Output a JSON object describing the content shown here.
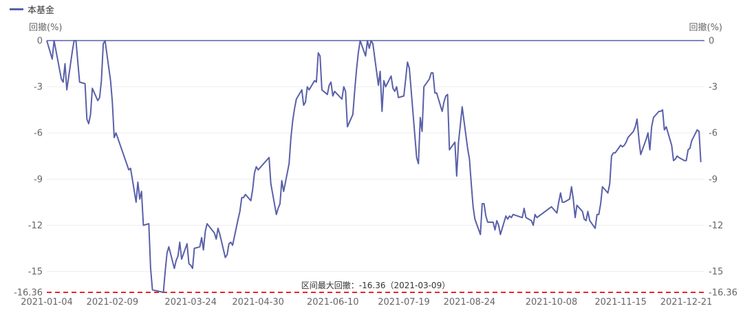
{
  "chart_data": {
    "type": "line",
    "legend": {
      "position": "top-left"
    },
    "series": [
      {
        "name": "本基金",
        "color": "#5960a8",
        "points": [
          [
            "2021-01-04",
            0
          ],
          [
            "2021-01-07",
            -1.2
          ],
          [
            "2021-01-08",
            0
          ],
          [
            "2021-01-12",
            -2.5
          ],
          [
            "2021-01-13",
            -2.7
          ],
          [
            "2021-01-14",
            -1.5
          ],
          [
            "2021-01-15",
            -3.2
          ],
          [
            "2021-01-18",
            -0.7
          ],
          [
            "2021-01-19",
            0
          ],
          [
            "2021-01-20",
            0
          ],
          [
            "2021-01-22",
            -2.7
          ],
          [
            "2021-01-25",
            -2.8
          ],
          [
            "2021-01-26",
            -5.1
          ],
          [
            "2021-01-27",
            -5.4
          ],
          [
            "2021-01-28",
            -4.8
          ],
          [
            "2021-01-29",
            -3.1
          ],
          [
            "2021-02-01",
            -3.9
          ],
          [
            "2021-02-02",
            -3.7
          ],
          [
            "2021-02-03",
            -2.6
          ],
          [
            "2021-02-04",
            -0.2
          ],
          [
            "2021-02-05",
            0
          ],
          [
            "2021-02-08",
            -2.6
          ],
          [
            "2021-02-09",
            -4.0
          ],
          [
            "2021-02-10",
            -6.3
          ],
          [
            "2021-02-11",
            -6.0
          ],
          [
            "2021-02-18",
            -8.4
          ],
          [
            "2021-02-19",
            -8.3
          ],
          [
            "2021-02-22",
            -10.5
          ],
          [
            "2021-02-23",
            -9.2
          ],
          [
            "2021-02-24",
            -10.3
          ],
          [
            "2021-02-25",
            -9.8
          ],
          [
            "2021-02-26",
            -12.0
          ],
          [
            "2021-03-01",
            -11.9
          ],
          [
            "2021-03-02",
            -14.8
          ],
          [
            "2021-03-03",
            -16.2
          ],
          [
            "2021-03-09",
            -16.36
          ],
          [
            "2021-03-10",
            -15.0
          ],
          [
            "2021-03-11",
            -13.8
          ],
          [
            "2021-03-12",
            -13.4
          ],
          [
            "2021-03-15",
            -14.8
          ],
          [
            "2021-03-16",
            -14.3
          ],
          [
            "2021-03-17",
            -14.0
          ],
          [
            "2021-03-18",
            -13.1
          ],
          [
            "2021-03-19",
            -14.2
          ],
          [
            "2021-03-22",
            -13.2
          ],
          [
            "2021-03-23",
            -14.5
          ],
          [
            "2021-03-24",
            -14.6
          ],
          [
            "2021-03-25",
            -14.8
          ],
          [
            "2021-03-26",
            -13.5
          ],
          [
            "2021-03-29",
            -13.4
          ],
          [
            "2021-03-30",
            -12.8
          ],
          [
            "2021-03-31",
            -13.6
          ],
          [
            "2021-04-01",
            -12.4
          ],
          [
            "2021-04-02",
            -11.9
          ],
          [
            "2021-04-06",
            -12.5
          ],
          [
            "2021-04-07",
            -12.9
          ],
          [
            "2021-04-08",
            -12.2
          ],
          [
            "2021-04-09",
            -12.6
          ],
          [
            "2021-04-12",
            -14.1
          ],
          [
            "2021-04-13",
            -13.9
          ],
          [
            "2021-04-14",
            -13.2
          ],
          [
            "2021-04-15",
            -13.1
          ],
          [
            "2021-04-16",
            -13.3
          ],
          [
            "2021-04-19",
            -11.6
          ],
          [
            "2021-04-20",
            -11.1
          ],
          [
            "2021-04-21",
            -10.2
          ],
          [
            "2021-04-22",
            -10.2
          ],
          [
            "2021-04-23",
            -10.0
          ],
          [
            "2021-04-26",
            -10.4
          ],
          [
            "2021-04-27",
            -9.7
          ],
          [
            "2021-04-28",
            -8.6
          ],
          [
            "2021-04-29",
            -8.2
          ],
          [
            "2021-04-30",
            -8.4
          ],
          [
            "2021-05-06",
            -7.6
          ],
          [
            "2021-05-07",
            -9.3
          ],
          [
            "2021-05-10",
            -11.3
          ],
          [
            "2021-05-11",
            -10.9
          ],
          [
            "2021-05-12",
            -10.6
          ],
          [
            "2021-05-13",
            -9.1
          ],
          [
            "2021-05-14",
            -9.8
          ],
          [
            "2021-05-17",
            -8.0
          ],
          [
            "2021-05-18",
            -6.3
          ],
          [
            "2021-05-19",
            -5.2
          ],
          [
            "2021-05-20",
            -4.4
          ],
          [
            "2021-05-21",
            -3.8
          ],
          [
            "2021-05-24",
            -3.2
          ],
          [
            "2021-05-25",
            -4.2
          ],
          [
            "2021-05-26",
            -4.0
          ],
          [
            "2021-05-27",
            -3.0
          ],
          [
            "2021-05-28",
            -3.2
          ],
          [
            "2021-05-31",
            -2.6
          ],
          [
            "2021-06-01",
            -2.7
          ],
          [
            "2021-06-02",
            -0.8
          ],
          [
            "2021-06-03",
            -1.0
          ],
          [
            "2021-06-04",
            -3.2
          ],
          [
            "2021-06-07",
            -3.5
          ],
          [
            "2021-06-08",
            -2.9
          ],
          [
            "2021-06-09",
            -2.7
          ],
          [
            "2021-06-10",
            -3.6
          ],
          [
            "2021-06-11",
            -3.3
          ],
          [
            "2021-06-15",
            -3.8
          ],
          [
            "2021-06-16",
            -3.0
          ],
          [
            "2021-06-17",
            -3.3
          ],
          [
            "2021-06-18",
            -5.6
          ],
          [
            "2021-06-21",
            -4.8
          ],
          [
            "2021-06-22",
            -3.3
          ],
          [
            "2021-06-23",
            -1.9
          ],
          [
            "2021-06-24",
            -0.8
          ],
          [
            "2021-06-25",
            0
          ],
          [
            "2021-06-28",
            -1.0
          ],
          [
            "2021-06-29",
            0
          ],
          [
            "2021-06-30",
            -0.5
          ],
          [
            "2021-07-01",
            0
          ],
          [
            "2021-07-02",
            -0.2
          ],
          [
            "2021-07-05",
            -2.9
          ],
          [
            "2021-07-06",
            -2.0
          ],
          [
            "2021-07-07",
            -4.6
          ],
          [
            "2021-07-08",
            -2.6
          ],
          [
            "2021-07-09",
            -3.0
          ],
          [
            "2021-07-12",
            -2.3
          ],
          [
            "2021-07-13",
            -3.1
          ],
          [
            "2021-07-14",
            -3.3
          ],
          [
            "2021-07-15",
            -3.0
          ],
          [
            "2021-07-16",
            -3.7
          ],
          [
            "2021-07-19",
            -3.6
          ],
          [
            "2021-07-20",
            -2.5
          ],
          [
            "2021-07-21",
            -1.4
          ],
          [
            "2021-07-22",
            -1.8
          ],
          [
            "2021-07-23",
            -3.2
          ],
          [
            "2021-07-26",
            -7.6
          ],
          [
            "2021-07-27",
            -8.0
          ],
          [
            "2021-07-28",
            -5.0
          ],
          [
            "2021-07-29",
            -5.9
          ],
          [
            "2021-07-30",
            -3.0
          ],
          [
            "2021-08-02",
            -2.5
          ],
          [
            "2021-08-03",
            -2.1
          ],
          [
            "2021-08-04",
            -2.1
          ],
          [
            "2021-08-05",
            -3.4
          ],
          [
            "2021-08-06",
            -3.4
          ],
          [
            "2021-08-09",
            -4.6
          ],
          [
            "2021-08-10",
            -4.0
          ],
          [
            "2021-08-11",
            -3.6
          ],
          [
            "2021-08-12",
            -3.5
          ],
          [
            "2021-08-13",
            -7.1
          ],
          [
            "2021-08-16",
            -6.6
          ],
          [
            "2021-08-17",
            -8.8
          ],
          [
            "2021-08-18",
            -6.6
          ],
          [
            "2021-08-19",
            -5.5
          ],
          [
            "2021-08-20",
            -4.3
          ],
          [
            "2021-08-23",
            -7.0
          ],
          [
            "2021-08-24",
            -7.7
          ],
          [
            "2021-08-25",
            -9.3
          ],
          [
            "2021-08-26",
            -10.8
          ],
          [
            "2021-08-27",
            -11.6
          ],
          [
            "2021-08-30",
            -12.6
          ],
          [
            "2021-08-31",
            -10.6
          ],
          [
            "2021-09-01",
            -10.6
          ],
          [
            "2021-09-02",
            -11.4
          ],
          [
            "2021-09-03",
            -11.8
          ],
          [
            "2021-09-06",
            -11.8
          ],
          [
            "2021-09-07",
            -12.3
          ],
          [
            "2021-09-08",
            -11.7
          ],
          [
            "2021-09-09",
            -12.0
          ],
          [
            "2021-09-10",
            -12.6
          ],
          [
            "2021-09-13",
            -11.4
          ],
          [
            "2021-09-14",
            -11.6
          ],
          [
            "2021-09-15",
            -11.4
          ],
          [
            "2021-09-16",
            -11.5
          ],
          [
            "2021-09-17",
            -11.3
          ],
          [
            "2021-09-22",
            -11.5
          ],
          [
            "2021-09-23",
            -10.9
          ],
          [
            "2021-09-24",
            -11.5
          ],
          [
            "2021-09-27",
            -11.7
          ],
          [
            "2021-09-28",
            -12.0
          ],
          [
            "2021-09-29",
            -11.3
          ],
          [
            "2021-09-30",
            -11.5
          ],
          [
            "2021-10-08",
            -10.8
          ],
          [
            "2021-10-11",
            -11.2
          ],
          [
            "2021-10-12",
            -10.5
          ],
          [
            "2021-10-13",
            -9.9
          ],
          [
            "2021-10-14",
            -10.5
          ],
          [
            "2021-10-15",
            -10.5
          ],
          [
            "2021-10-18",
            -10.3
          ],
          [
            "2021-10-19",
            -9.5
          ],
          [
            "2021-10-20",
            -10.3
          ],
          [
            "2021-10-21",
            -11.5
          ],
          [
            "2021-10-22",
            -10.7
          ],
          [
            "2021-10-25",
            -11.1
          ],
          [
            "2021-10-26",
            -11.6
          ],
          [
            "2021-10-27",
            -11.7
          ],
          [
            "2021-10-28",
            -11.1
          ],
          [
            "2021-10-29",
            -11.7
          ],
          [
            "2021-11-01",
            -12.2
          ],
          [
            "2021-11-02",
            -11.3
          ],
          [
            "2021-11-03",
            -11.3
          ],
          [
            "2021-11-04",
            -10.6
          ],
          [
            "2021-11-05",
            -9.5
          ],
          [
            "2021-11-08",
            -9.9
          ],
          [
            "2021-11-09",
            -9.3
          ],
          [
            "2021-11-10",
            -7.5
          ],
          [
            "2021-11-11",
            -7.3
          ],
          [
            "2021-11-12",
            -7.3
          ],
          [
            "2021-11-15",
            -6.8
          ],
          [
            "2021-11-16",
            -6.9
          ],
          [
            "2021-11-17",
            -6.8
          ],
          [
            "2021-11-18",
            -6.6
          ],
          [
            "2021-11-19",
            -6.3
          ],
          [
            "2021-11-22",
            -5.9
          ],
          [
            "2021-11-23",
            -5.6
          ],
          [
            "2021-11-24",
            -5.1
          ],
          [
            "2021-11-25",
            -6.4
          ],
          [
            "2021-11-26",
            -7.4
          ],
          [
            "2021-11-29",
            -6.4
          ],
          [
            "2021-11-30",
            -6.0
          ],
          [
            "2021-12-01",
            -7.1
          ],
          [
            "2021-12-02",
            -5.6
          ],
          [
            "2021-12-03",
            -5.0
          ],
          [
            "2021-12-06",
            -4.6
          ],
          [
            "2021-12-07",
            -4.6
          ],
          [
            "2021-12-08",
            -4.5
          ],
          [
            "2021-12-09",
            -5.8
          ],
          [
            "2021-12-10",
            -5.6
          ],
          [
            "2021-12-13",
            -6.8
          ],
          [
            "2021-12-14",
            -7.8
          ],
          [
            "2021-12-15",
            -7.7
          ],
          [
            "2021-12-16",
            -7.5
          ],
          [
            "2021-12-17",
            -7.6
          ],
          [
            "2021-12-20",
            -7.8
          ],
          [
            "2021-12-21",
            -7.8
          ],
          [
            "2021-12-22",
            -7.1
          ],
          [
            "2021-12-23",
            -7.0
          ],
          [
            "2021-12-24",
            -6.5
          ],
          [
            "2021-12-27",
            -5.8
          ],
          [
            "2021-12-28",
            -5.9
          ],
          [
            "2021-12-29",
            -7.9
          ]
        ]
      }
    ],
    "x_ticks": [
      "2021-01-04",
      "2021-02-09",
      "2021-03-24",
      "2021-04-30",
      "2021-06-10",
      "2021-07-19",
      "2021-08-24",
      "2021-10-08",
      "2021-11-15",
      "2021-12-21"
    ],
    "xlim": [
      "2021-01-04",
      "2021-12-31"
    ],
    "y_ticks": [
      0,
      -3,
      -6,
      -9,
      -12,
      -15
    ],
    "y_ticks_labels": [
      "0",
      "-3",
      "-6",
      "-9",
      "-12",
      "-15"
    ],
    "y_min_label": "-16.36",
    "ylim": [
      -16.36,
      0
    ],
    "ylabel_left": "回撤(%)",
    "ylabel_right": "回撤(%)",
    "max_drawdown": {
      "value": -16.36,
      "date": "2021-03-09",
      "label": "区间最大回撤：-16.36（2021-03-09）",
      "color": "#e8262b"
    },
    "baseline_color": "#5960a8",
    "grid": true,
    "grid_color": "#eeeeee"
  }
}
